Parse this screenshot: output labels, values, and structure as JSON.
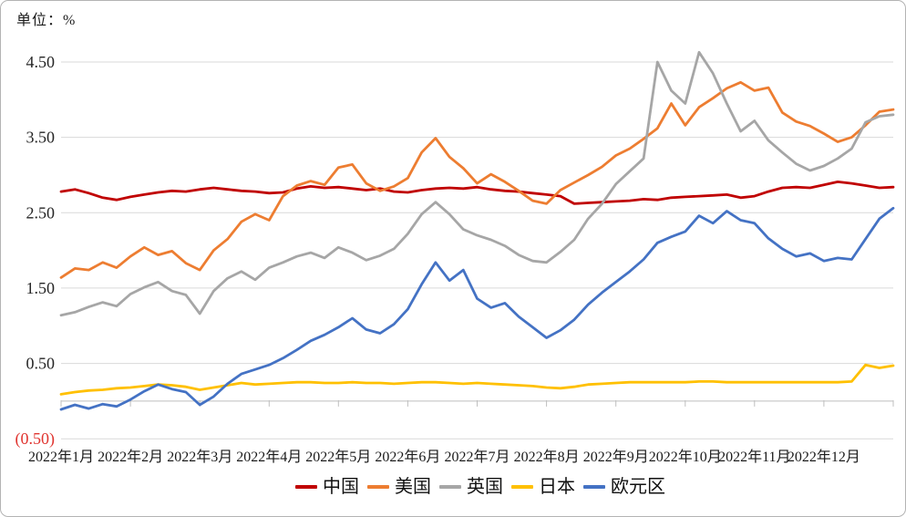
{
  "chart_data": {
    "type": "line",
    "title": "",
    "unit_label": "单位：%",
    "legend_position": "bottom",
    "grid_on": true,
    "grid_color": "#d9d9d9",
    "axis_color": "#bfbfbf",
    "text_color": "#262626",
    "negative_label_color": "#e0342f",
    "x_axis": {
      "labels": [
        "2022年1月",
        "2022年2月",
        "2022年3月",
        "2022年4月",
        "2022年5月",
        "2022年6月",
        "2022年7月",
        "2022年8月",
        "2022年9月",
        "2022年10月",
        "2022年11月",
        "2022年12月"
      ],
      "points_per_month": 5
    },
    "y_axis": {
      "min": -0.5,
      "max": 4.5,
      "ticks": [
        {
          "value": 4.5,
          "label": "4.50"
        },
        {
          "value": 3.5,
          "label": "3.50"
        },
        {
          "value": 2.5,
          "label": "2.50"
        },
        {
          "value": 1.5,
          "label": "1.50"
        },
        {
          "value": 0.5,
          "label": "0.50"
        },
        {
          "value": -0.5,
          "label": "(0.50)",
          "color": "#e0342f"
        }
      ]
    },
    "series": [
      {
        "key": "china",
        "label": "中国",
        "color": "#C00000",
        "values": [
          2.78,
          2.81,
          2.76,
          2.7,
          2.67,
          2.71,
          2.74,
          2.77,
          2.79,
          2.78,
          2.81,
          2.83,
          2.81,
          2.79,
          2.78,
          2.76,
          2.77,
          2.82,
          2.85,
          2.83,
          2.84,
          2.82,
          2.8,
          2.82,
          2.78,
          2.77,
          2.8,
          2.82,
          2.83,
          2.82,
          2.84,
          2.81,
          2.79,
          2.78,
          2.76,
          2.74,
          2.72,
          2.62,
          2.63,
          2.64,
          2.65,
          2.66,
          2.68,
          2.67,
          2.7,
          2.71,
          2.72,
          2.73,
          2.74,
          2.7,
          2.72,
          2.78,
          2.83,
          2.84,
          2.83,
          2.87,
          2.91,
          2.89,
          2.86,
          2.83,
          2.84
        ]
      },
      {
        "key": "usa",
        "label": "美国",
        "color": "#ED7D31",
        "values": [
          1.64,
          1.76,
          1.74,
          1.84,
          1.77,
          1.92,
          2.04,
          1.94,
          1.99,
          1.83,
          1.74,
          2.0,
          2.15,
          2.38,
          2.48,
          2.4,
          2.72,
          2.86,
          2.92,
          2.87,
          3.1,
          3.14,
          2.89,
          2.79,
          2.85,
          2.96,
          3.3,
          3.49,
          3.24,
          3.09,
          2.89,
          3.01,
          2.91,
          2.79,
          2.66,
          2.62,
          2.8,
          2.9,
          3.0,
          3.11,
          3.26,
          3.35,
          3.48,
          3.62,
          3.95,
          3.66,
          3.9,
          4.02,
          4.15,
          4.23,
          4.12,
          4.16,
          3.83,
          3.71,
          3.65,
          3.55,
          3.44,
          3.5,
          3.66,
          3.84,
          3.87
        ]
      },
      {
        "key": "uk",
        "label": "英国",
        "color": "#A6A6A6",
        "values": [
          1.14,
          1.18,
          1.25,
          1.31,
          1.26,
          1.42,
          1.51,
          1.58,
          1.46,
          1.41,
          1.16,
          1.46,
          1.63,
          1.72,
          1.61,
          1.77,
          1.84,
          1.92,
          1.97,
          1.9,
          2.04,
          1.97,
          1.87,
          1.93,
          2.02,
          2.22,
          2.48,
          2.64,
          2.48,
          2.28,
          2.2,
          2.14,
          2.06,
          1.94,
          1.86,
          1.84,
          1.98,
          2.14,
          2.42,
          2.62,
          2.88,
          3.05,
          3.22,
          4.5,
          4.12,
          3.95,
          4.63,
          4.35,
          3.95,
          3.58,
          3.72,
          3.46,
          3.3,
          3.15,
          3.06,
          3.12,
          3.22,
          3.35,
          3.7,
          3.78,
          3.8
        ]
      },
      {
        "key": "japan",
        "label": "日本",
        "color": "#FFC000",
        "values": [
          0.09,
          0.12,
          0.14,
          0.15,
          0.17,
          0.18,
          0.2,
          0.22,
          0.21,
          0.19,
          0.15,
          0.18,
          0.21,
          0.24,
          0.22,
          0.23,
          0.24,
          0.25,
          0.25,
          0.24,
          0.24,
          0.25,
          0.24,
          0.24,
          0.23,
          0.24,
          0.25,
          0.25,
          0.24,
          0.23,
          0.24,
          0.23,
          0.22,
          0.21,
          0.2,
          0.18,
          0.17,
          0.19,
          0.22,
          0.23,
          0.24,
          0.25,
          0.25,
          0.25,
          0.25,
          0.25,
          0.26,
          0.26,
          0.25,
          0.25,
          0.25,
          0.25,
          0.25,
          0.25,
          0.25,
          0.25,
          0.25,
          0.26,
          0.48,
          0.44,
          0.47
        ]
      },
      {
        "key": "eurozone",
        "label": "欧元区",
        "color": "#4472C4",
        "values": [
          -0.11,
          -0.05,
          -0.1,
          -0.04,
          -0.07,
          0.02,
          0.13,
          0.22,
          0.16,
          0.12,
          -0.05,
          0.06,
          0.23,
          0.36,
          0.42,
          0.48,
          0.57,
          0.68,
          0.8,
          0.88,
          0.98,
          1.1,
          0.95,
          0.9,
          1.02,
          1.22,
          1.55,
          1.84,
          1.6,
          1.74,
          1.36,
          1.24,
          1.3,
          1.12,
          0.98,
          0.84,
          0.94,
          1.08,
          1.28,
          1.44,
          1.58,
          1.72,
          1.88,
          2.1,
          2.18,
          2.25,
          2.46,
          2.36,
          2.52,
          2.4,
          2.36,
          2.16,
          2.02,
          1.92,
          1.96,
          1.86,
          1.9,
          1.88,
          2.15,
          2.42,
          2.56
        ]
      }
    ]
  }
}
